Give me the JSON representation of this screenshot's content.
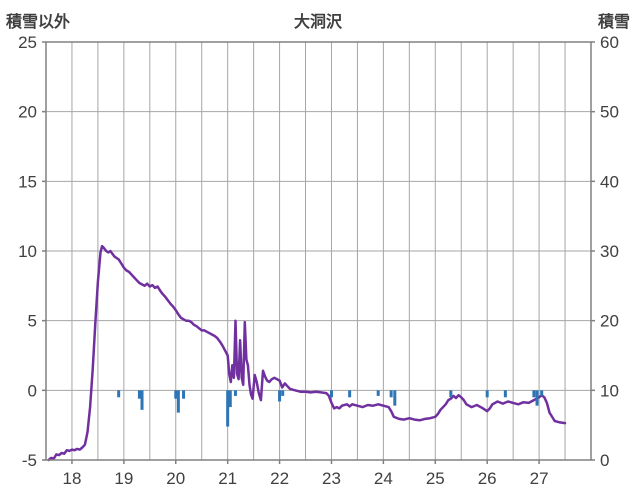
{
  "header": {
    "left_axis_title": "積雪以外",
    "title": "大洞沢",
    "right_axis_title": "積雪"
  },
  "colors": {
    "line": "#7030a0",
    "bar": "#2e75b6",
    "grid": "#a6a6a6",
    "border": "#808080",
    "text": "#404040",
    "background": "#ffffff"
  },
  "chart_data": {
    "type": "line",
    "title": "大洞沢",
    "left_axis": {
      "label": "積雪以外",
      "min": -5,
      "max": 25,
      "ticks": [
        -5,
        0,
        5,
        10,
        15,
        20,
        25
      ]
    },
    "right_axis": {
      "label": "積雪",
      "min": 0,
      "max": 60,
      "ticks": [
        0,
        10,
        20,
        30,
        40,
        50,
        60
      ]
    },
    "x_axis": {
      "min": 17.5,
      "max": 28,
      "ticks": [
        18,
        19,
        20,
        21,
        22,
        23,
        24,
        25,
        26,
        27
      ],
      "gridline_step": 0.5,
      "grid": true
    },
    "series": [
      {
        "name": "purple-line",
        "type": "line",
        "axis": "left",
        "color": "#7030a0",
        "points": [
          [
            17.55,
            -5.0
          ],
          [
            17.6,
            -4.85
          ],
          [
            17.65,
            -4.9
          ],
          [
            17.7,
            -4.6
          ],
          [
            17.75,
            -4.65
          ],
          [
            17.8,
            -4.5
          ],
          [
            17.85,
            -4.55
          ],
          [
            17.9,
            -4.3
          ],
          [
            17.95,
            -4.35
          ],
          [
            18.0,
            -4.25
          ],
          [
            18.05,
            -4.3
          ],
          [
            18.1,
            -4.2
          ],
          [
            18.15,
            -4.25
          ],
          [
            18.2,
            -4.1
          ],
          [
            18.25,
            -3.9
          ],
          [
            18.3,
            -3.0
          ],
          [
            18.35,
            -1.2
          ],
          [
            18.4,
            1.5
          ],
          [
            18.45,
            4.8
          ],
          [
            18.5,
            7.8
          ],
          [
            18.55,
            9.9
          ],
          [
            18.58,
            10.35
          ],
          [
            18.62,
            10.2
          ],
          [
            18.66,
            10.0
          ],
          [
            18.7,
            9.9
          ],
          [
            18.74,
            10.0
          ],
          [
            18.78,
            9.8
          ],
          [
            18.82,
            9.6
          ],
          [
            18.86,
            9.5
          ],
          [
            18.9,
            9.4
          ],
          [
            18.95,
            9.1
          ],
          [
            19.0,
            8.8
          ],
          [
            19.05,
            8.6
          ],
          [
            19.1,
            8.5
          ],
          [
            19.15,
            8.3
          ],
          [
            19.2,
            8.1
          ],
          [
            19.25,
            7.9
          ],
          [
            19.3,
            7.7
          ],
          [
            19.35,
            7.6
          ],
          [
            19.4,
            7.5
          ],
          [
            19.45,
            7.65
          ],
          [
            19.5,
            7.45
          ],
          [
            19.55,
            7.55
          ],
          [
            19.6,
            7.35
          ],
          [
            19.65,
            7.45
          ],
          [
            19.7,
            7.15
          ],
          [
            19.75,
            6.9
          ],
          [
            19.8,
            6.7
          ],
          [
            19.85,
            6.45
          ],
          [
            19.9,
            6.2
          ],
          [
            19.95,
            6.0
          ],
          [
            20.0,
            5.75
          ],
          [
            20.05,
            5.45
          ],
          [
            20.1,
            5.2
          ],
          [
            20.15,
            5.1
          ],
          [
            20.2,
            5.0
          ],
          [
            20.25,
            5.0
          ],
          [
            20.3,
            4.9
          ],
          [
            20.35,
            4.7
          ],
          [
            20.4,
            4.6
          ],
          [
            20.45,
            4.45
          ],
          [
            20.5,
            4.3
          ],
          [
            20.55,
            4.3
          ],
          [
            20.6,
            4.2
          ],
          [
            20.65,
            4.1
          ],
          [
            20.7,
            4.0
          ],
          [
            20.75,
            3.9
          ],
          [
            20.8,
            3.75
          ],
          [
            20.85,
            3.5
          ],
          [
            20.9,
            3.2
          ],
          [
            20.95,
            2.85
          ],
          [
            21.0,
            2.5
          ],
          [
            21.03,
            1.2
          ],
          [
            21.06,
            0.6
          ],
          [
            21.09,
            1.8
          ],
          [
            21.12,
            0.9
          ],
          [
            21.15,
            5.0
          ],
          [
            21.18,
            1.2
          ],
          [
            21.21,
            0.8
          ],
          [
            21.24,
            3.6
          ],
          [
            21.27,
            0.9
          ],
          [
            21.3,
            0.4
          ],
          [
            21.33,
            4.9
          ],
          [
            21.36,
            2.2
          ],
          [
            21.39,
            1.8
          ],
          [
            21.42,
            0.4
          ],
          [
            21.45,
            -0.3
          ],
          [
            21.48,
            -0.6
          ],
          [
            21.52,
            1.1
          ],
          [
            21.56,
            0.6
          ],
          [
            21.6,
            -0.2
          ],
          [
            21.64,
            -0.7
          ],
          [
            21.68,
            1.4
          ],
          [
            21.72,
            1.0
          ],
          [
            21.76,
            0.7
          ],
          [
            21.8,
            0.6
          ],
          [
            21.85,
            0.8
          ],
          [
            21.9,
            0.9
          ],
          [
            21.95,
            0.8
          ],
          [
            22.0,
            0.7
          ],
          [
            22.05,
            0.2
          ],
          [
            22.1,
            0.5
          ],
          [
            22.15,
            0.3
          ],
          [
            22.2,
            0.1
          ],
          [
            22.3,
            0.0
          ],
          [
            22.4,
            -0.1
          ],
          [
            22.5,
            -0.1
          ],
          [
            22.6,
            -0.15
          ],
          [
            22.7,
            -0.1
          ],
          [
            22.8,
            -0.15
          ],
          [
            22.9,
            -0.2
          ],
          [
            22.95,
            -0.4
          ],
          [
            23.0,
            -0.9
          ],
          [
            23.05,
            -1.3
          ],
          [
            23.1,
            -1.2
          ],
          [
            23.15,
            -1.3
          ],
          [
            23.2,
            -1.1
          ],
          [
            23.3,
            -1.0
          ],
          [
            23.35,
            -1.15
          ],
          [
            23.4,
            -1.0
          ],
          [
            23.5,
            -1.1
          ],
          [
            23.6,
            -1.2
          ],
          [
            23.7,
            -1.05
          ],
          [
            23.8,
            -1.1
          ],
          [
            23.9,
            -1.0
          ],
          [
            24.0,
            -1.1
          ],
          [
            24.1,
            -1.2
          ],
          [
            24.15,
            -1.5
          ],
          [
            24.2,
            -1.9
          ],
          [
            24.3,
            -2.05
          ],
          [
            24.4,
            -2.1
          ],
          [
            24.5,
            -2.0
          ],
          [
            24.6,
            -2.1
          ],
          [
            24.7,
            -2.15
          ],
          [
            24.8,
            -2.05
          ],
          [
            24.9,
            -2.0
          ],
          [
            25.0,
            -1.9
          ],
          [
            25.05,
            -1.7
          ],
          [
            25.1,
            -1.4
          ],
          [
            25.2,
            -1.0
          ],
          [
            25.25,
            -0.7
          ],
          [
            25.3,
            -0.6
          ],
          [
            25.35,
            -0.4
          ],
          [
            25.4,
            -0.55
          ],
          [
            25.45,
            -0.35
          ],
          [
            25.5,
            -0.5
          ],
          [
            25.55,
            -0.7
          ],
          [
            25.6,
            -1.0
          ],
          [
            25.7,
            -1.2
          ],
          [
            25.8,
            -1.05
          ],
          [
            25.9,
            -1.25
          ],
          [
            26.0,
            -1.5
          ],
          [
            26.05,
            -1.3
          ],
          [
            26.1,
            -1.0
          ],
          [
            26.2,
            -0.8
          ],
          [
            26.3,
            -0.95
          ],
          [
            26.4,
            -0.8
          ],
          [
            26.5,
            -0.9
          ],
          [
            26.6,
            -1.0
          ],
          [
            26.7,
            -0.85
          ],
          [
            26.8,
            -0.9
          ],
          [
            26.9,
            -0.7
          ],
          [
            27.0,
            -0.5
          ],
          [
            27.05,
            -0.35
          ],
          [
            27.1,
            -0.5
          ],
          [
            27.15,
            -0.9
          ],
          [
            27.2,
            -1.6
          ],
          [
            27.3,
            -2.2
          ],
          [
            27.4,
            -2.3
          ],
          [
            27.5,
            -2.35
          ]
        ]
      },
      {
        "name": "blue-bars",
        "type": "bar",
        "axis": "left",
        "color": "#2e75b6",
        "points": [
          [
            18.9,
            -0.5
          ],
          [
            19.3,
            -0.6
          ],
          [
            19.35,
            -1.4
          ],
          [
            20.0,
            -0.6
          ],
          [
            20.05,
            -1.6
          ],
          [
            20.15,
            -0.6
          ],
          [
            21.0,
            -2.6
          ],
          [
            21.05,
            -1.2
          ],
          [
            21.15,
            -0.4
          ],
          [
            22.0,
            -0.8
          ],
          [
            22.06,
            -0.4
          ],
          [
            23.0,
            -0.5
          ],
          [
            23.35,
            -0.5
          ],
          [
            23.9,
            -0.4
          ],
          [
            24.15,
            -0.5
          ],
          [
            24.22,
            -1.1
          ],
          [
            25.3,
            -0.5
          ],
          [
            26.0,
            -0.5
          ],
          [
            26.35,
            -0.5
          ],
          [
            26.9,
            -0.5
          ],
          [
            26.96,
            -1.1
          ],
          [
            27.05,
            -0.4
          ]
        ]
      }
    ]
  }
}
